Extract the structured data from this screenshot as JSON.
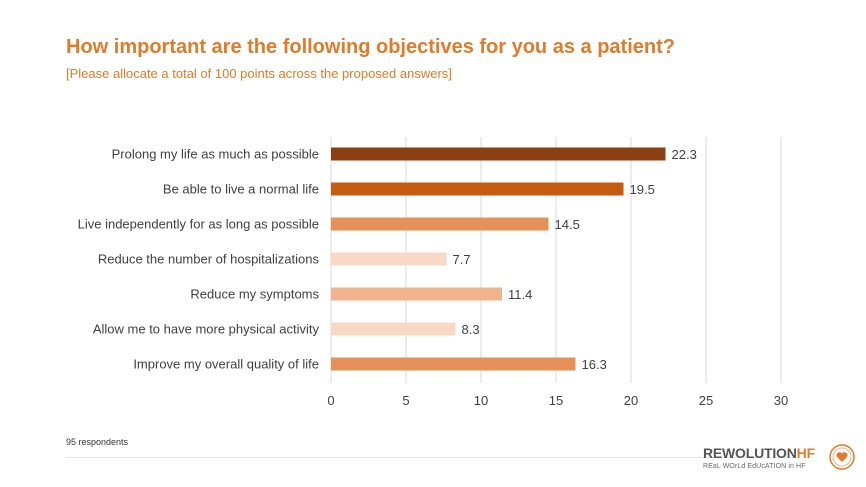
{
  "title": "How important are the following objectives for you as a patient?",
  "subtitle": "[Please allocate a total of 100 points across the proposed answers]",
  "footnote": "95 respondents",
  "logo": {
    "name_main": "REWOLUTION",
    "name_accent": "HF",
    "tagline": "REaL WOrLd EdUcATION in HF"
  },
  "colors": {
    "title": "#e07b2a",
    "axis_text": "#404040",
    "gridline": "#d9d9d9"
  },
  "chart_data": {
    "type": "bar",
    "orientation": "horizontal",
    "title": "How important are the following objectives for you as a patient?",
    "subtitle": "[Please allocate a total of 100 points across the proposed answers]",
    "categories": [
      "Prolong my life as much as possible",
      "Be able to live a normal life",
      "Live independently for as long as possible",
      "Reduce the number of hospitalizations",
      "Reduce my symptoms",
      "Allow me to have more physical activity",
      "Improve my overall quality of life"
    ],
    "values": [
      22.3,
      19.5,
      14.5,
      7.7,
      11.4,
      8.3,
      16.3
    ],
    "value_labels": [
      "22.3",
      "19.5",
      "14.5",
      "7.7",
      "11.4",
      "8.3",
      "16.3"
    ],
    "bar_colors": [
      "#8b3f12",
      "#c55a11",
      "#e6915a",
      "#f8d9c5",
      "#f0b48c",
      "#f8d9c5",
      "#e6915a"
    ],
    "xlim": [
      0,
      30
    ],
    "x_ticks": [
      "0",
      "5",
      "10",
      "15",
      "20",
      "25",
      "30"
    ],
    "grid": true
  }
}
